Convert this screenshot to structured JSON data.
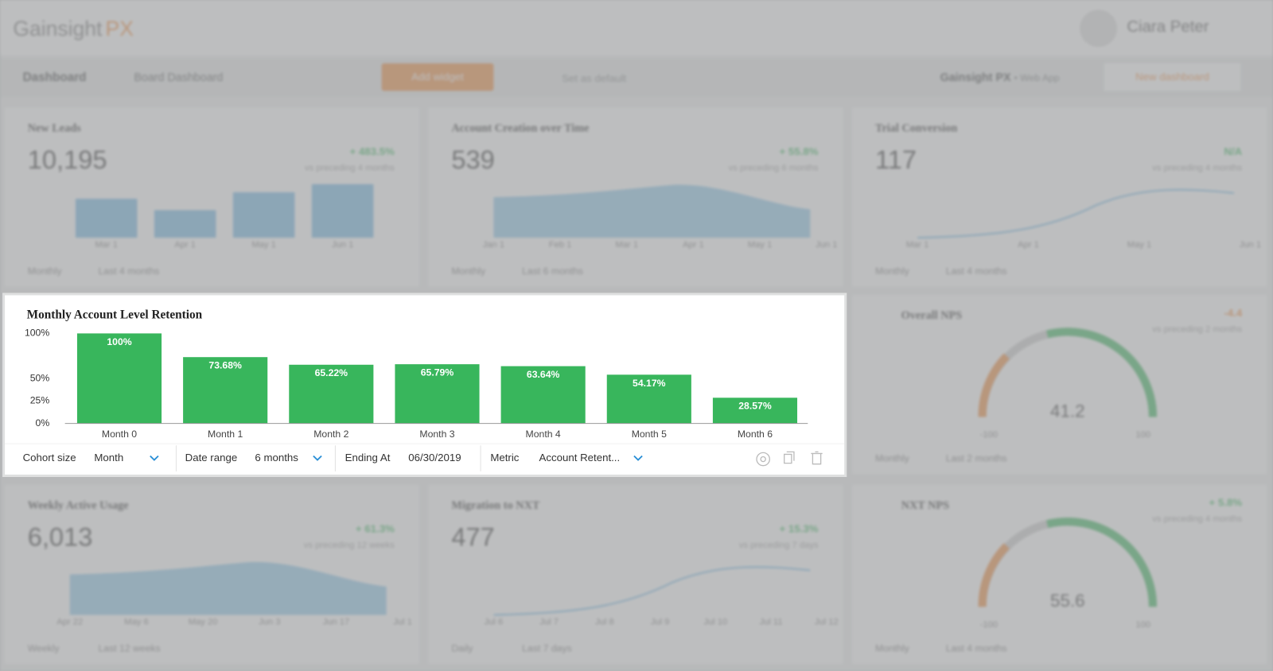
{
  "header": {
    "logo": "Gainsight",
    "logo_accent": "PX",
    "user": "Ciara Peter"
  },
  "toolbar": {
    "title": "Dashboard",
    "dashboard": "Board Dashboard",
    "add_widget": "Add widget",
    "set_default": "Set as default",
    "product": "Gainsight PX",
    "product_sub": "• Web App",
    "new_dashboard": "New dashboard"
  },
  "widgets": [
    {
      "kind": "bar",
      "title": "New Leads",
      "total": "10,195",
      "change": "+ 483.5%",
      "compare": "vs preceding 4 months",
      "x_labels": [
        "Mar 1",
        "Apr 1",
        "May 1",
        "Jun 1"
      ],
      "period": "Monthly",
      "range": "Last 4 months"
    },
    {
      "kind": "area",
      "title": "Account Creation over Time",
      "total": "539",
      "change": "+ 55.8%",
      "compare": "vs preceding 6 months",
      "x_labels": [
        "Jan 1",
        "Feb 1",
        "Mar 1",
        "Apr 1",
        "May 1",
        "Jun 1"
      ],
      "period": "Monthly",
      "range": "Last 6 months"
    },
    {
      "kind": "line",
      "title": "Trial Conversion",
      "total": "117",
      "change": "N/A",
      "compare": "vs preceding 4 months",
      "x_labels": [
        "Mar 1",
        "Apr 1",
        "May 1",
        "Jun 1"
      ],
      "period": "Monthly",
      "range": "Last 4 months"
    },
    {
      "kind": "gauge",
      "title": "Overall NPS",
      "total": "41.2",
      "change": "-4.4",
      "compare": "vs preceding 2 months",
      "x_labels": [
        "-100",
        "100"
      ],
      "period": "Monthly",
      "range": "Last 2 months"
    },
    {
      "kind": "area",
      "title": "Weekly Active Usage",
      "total": "6,013",
      "change": "+ 61.3%",
      "compare": "vs preceding 12 weeks",
      "x_labels": [
        "Apr 22",
        "May 6",
        "May 20",
        "Jun 3",
        "Jun 17",
        "Jul 1"
      ],
      "period": "Weekly",
      "range": "Last 12 weeks"
    },
    {
      "kind": "line",
      "title": "Migration to NXT",
      "total": "477",
      "change": "+ 15.3%",
      "compare": "vs preceding 7 days",
      "x_labels": [
        "Jul 6",
        "Jul 7",
        "Jul 8",
        "Jul 9",
        "Jul 10",
        "Jul 11",
        "Jul 12"
      ],
      "period": "Daily",
      "range": "Last 7 days"
    },
    {
      "kind": "gauge",
      "title": "NXT NPS",
      "total": "55.6",
      "change": "+ 5.8%",
      "compare": "vs preceding 4 months",
      "x_labels": [
        "-100",
        "100"
      ],
      "period": "Monthly",
      "range": "Last 4 months"
    }
  ],
  "chart_data": {
    "type": "bar",
    "title": "Monthly Account Level Retention",
    "categories": [
      "Month 0",
      "Month 1",
      "Month 2",
      "Month 3",
      "Month 4",
      "Month 5",
      "Month 6"
    ],
    "values": [
      100,
      73.68,
      65.22,
      65.79,
      63.64,
      54.17,
      28.57
    ],
    "value_labels": [
      "100%",
      "73.68%",
      "65.22%",
      "65.79%",
      "63.64%",
      "54.17%",
      "28.57%"
    ],
    "color": "#38b65c",
    "ylim": [
      0,
      100
    ],
    "yticks": [
      {
        "value": 0,
        "label": "0%"
      },
      {
        "value": 25,
        "label": "25%"
      },
      {
        "value": 50,
        "label": "50%"
      },
      {
        "value": 100,
        "label": "100%"
      }
    ]
  },
  "filters": [
    {
      "label": "Cohort size",
      "value": "Month"
    },
    {
      "label": "Date range",
      "value": "6 months"
    },
    {
      "label": "Ending At",
      "value": "06/30/2019"
    },
    {
      "label": "Metric",
      "value": "Account Retent..."
    }
  ]
}
